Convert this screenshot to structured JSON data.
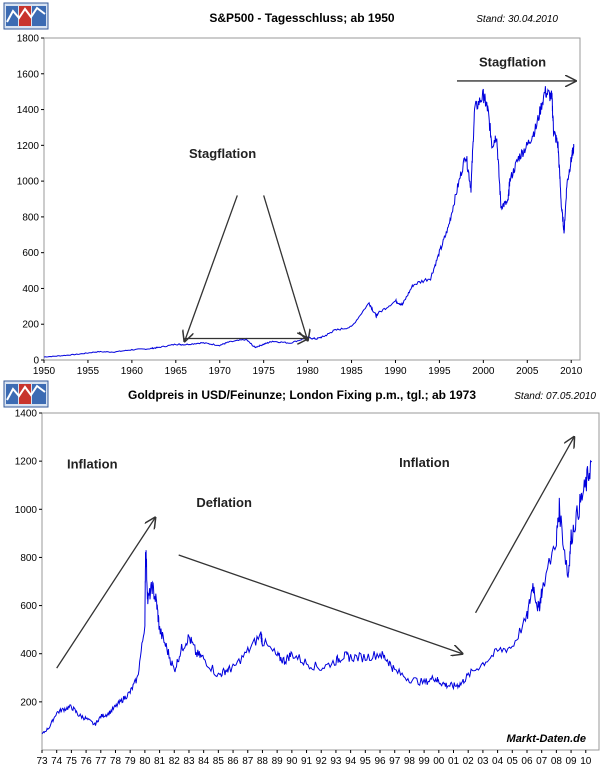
{
  "colors": {
    "series": "#0000dd",
    "grid": "#9a9a9a",
    "arrow": "#333333",
    "anno": "#222222"
  },
  "icons": [
    "chart-logo-icon",
    "chart-logo-icon"
  ],
  "chart_data": [
    {
      "type": "line",
      "title": "S&P500 - Tagesschluss; ab 1950",
      "stand": "Stand: 30.04.2010",
      "xlabel": "",
      "ylabel": "",
      "xlim": [
        1950,
        2011
      ],
      "ylim": [
        0,
        1800
      ],
      "x_ticks": [
        1950,
        1955,
        1960,
        1965,
        1970,
        1975,
        1980,
        1985,
        1990,
        1995,
        2000,
        2005,
        2010
      ],
      "y_ticks": [
        0,
        200,
        400,
        600,
        800,
        1000,
        1200,
        1400,
        1600,
        1800
      ],
      "grid": false,
      "series": [
        {
          "x": [
            1950,
            1952,
            1954,
            1956,
            1958,
            1960,
            1962,
            1963,
            1965,
            1966,
            1968,
            1970,
            1971,
            1973,
            1974,
            1975,
            1976,
            1978,
            1980,
            1981,
            1982,
            1983,
            1985,
            1987,
            1987.8,
            1988,
            1990,
            1990.8,
            1992,
            1994,
            1995,
            1996,
            1997,
            1998,
            1998.6,
            1999,
            2000,
            2000.5,
            2001,
            2001.5,
            2002,
            2002.8,
            2003,
            2004,
            2005,
            2006,
            2007,
            2007.8,
            2008,
            2008.5,
            2008.9,
            2009.2,
            2009.5,
            2010,
            2010.3
          ],
          "y": [
            17,
            24,
            33,
            46,
            45,
            57,
            63,
            70,
            88,
            86,
            96,
            82,
            100,
            115,
            70,
            88,
            105,
            95,
            125,
            118,
            135,
            165,
            185,
            320,
            245,
            260,
            330,
            310,
            420,
            460,
            600,
            740,
            950,
            1150,
            960,
            1400,
            1480,
            1400,
            1200,
            1260,
            860,
            880,
            1000,
            1130,
            1200,
            1300,
            1500,
            1470,
            1280,
            1200,
            850,
            720,
            980,
            1120,
            1190
          ]
        }
      ],
      "annotations": [
        {
          "label": "Stagflation",
          "x": 1966.5,
          "y": 1130
        },
        {
          "label": "Stagflation",
          "x": 1999.5,
          "y": 1640
        }
      ],
      "arrows": [
        {
          "from": [
            1966,
            120
          ],
          "to": [
            1980,
            120
          ]
        },
        {
          "from": [
            1972,
            920
          ],
          "to": [
            1966,
            105
          ]
        },
        {
          "from": [
            1975,
            920
          ],
          "to": [
            1980,
            110
          ]
        },
        {
          "from": [
            1997,
            1560
          ],
          "to": [
            2010.5,
            1560
          ]
        }
      ]
    },
    {
      "type": "line",
      "title": "Goldpreis in USD/Feinunze; London Fixing p.m., tgl.; ab 1973",
      "stand": "Stand: 07.05.2010",
      "xlabel": "",
      "ylabel": "",
      "xlim": [
        1973,
        2010.9
      ],
      "ylim": [
        0,
        1400
      ],
      "x_ticks": [
        "73",
        "74",
        "75",
        "76",
        "77",
        "78",
        "79",
        "80",
        "81",
        "82",
        "83",
        "84",
        "85",
        "86",
        "87",
        "88",
        "89",
        "90",
        "91",
        "92",
        "93",
        "94",
        "95",
        "96",
        "97",
        "98",
        "99",
        "00",
        "01",
        "02",
        "03",
        "04",
        "05",
        "06",
        "07",
        "08",
        "09",
        "10"
      ],
      "y_ticks": [
        200,
        400,
        600,
        800,
        1000,
        1200,
        1400
      ],
      "grid": false,
      "watermark": "Markt-Daten.de",
      "series": [
        {
          "x": [
            1973,
            1973.5,
            1974,
            1974.5,
            1975,
            1975.5,
            1976,
            1976.6,
            1977,
            1977.5,
            1978,
            1978.5,
            1979,
            1979.5,
            1980,
            1980.05,
            1980.2,
            1980.5,
            1980.8,
            1981,
            1981.5,
            1982,
            1982.5,
            1983,
            1983.5,
            1984,
            1985,
            1985.5,
            1986,
            1987,
            1987.9,
            1988,
            1989,
            1989.5,
            1990,
            1991,
            1992,
            1993,
            1993.5,
            1994,
            1995,
            1996,
            1996.5,
            1997,
            1998,
            1999,
            1999.7,
            2000,
            2000.5,
            2001,
            2001.5,
            2002,
            2003,
            2004,
            2005,
            2006,
            2006.4,
            2006.8,
            2007,
            2008,
            2008.2,
            2008.8,
            2009,
            2009.5,
            2010,
            2010.4
          ],
          "y": [
            65,
            95,
            155,
            170,
            180,
            145,
            130,
            105,
            140,
            150,
            180,
            210,
            240,
            300,
            520,
            850,
            620,
            680,
            610,
            500,
            420,
            330,
            420,
            470,
            400,
            380,
            310,
            330,
            340,
            410,
            480,
            450,
            390,
            370,
            400,
            360,
            340,
            370,
            390,
            385,
            385,
            400,
            375,
            330,
            295,
            280,
            300,
            285,
            270,
            265,
            275,
            310,
            360,
            410,
            430,
            550,
            690,
            580,
            660,
            880,
            1000,
            720,
            880,
            1000,
            1100,
            1200
          ]
        }
      ],
      "annotations": [
        {
          "label": "Inflation",
          "x": 1974.7,
          "y": 1170
        },
        {
          "label": "Deflation",
          "x": 1983.5,
          "y": 1010
        },
        {
          "label": "Inflation",
          "x": 1997.3,
          "y": 1175
        }
      ],
      "arrows": [
        {
          "from": [
            1974,
            340
          ],
          "to": [
            1980.7,
            965
          ]
        },
        {
          "from": [
            1982.3,
            810
          ],
          "to": [
            2001.6,
            400
          ]
        },
        {
          "from": [
            2002.5,
            570
          ],
          "to": [
            2009.2,
            1300
          ]
        }
      ]
    }
  ]
}
